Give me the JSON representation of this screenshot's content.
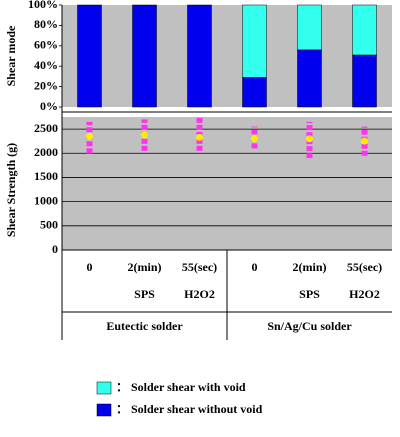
{
  "chart_data": [
    {
      "type": "stacked_bar",
      "ylabel": "Shear mode",
      "series": [
        {
          "name": "： Solder shear without void",
          "color": "#0000ee",
          "values": [
            100,
            100,
            100,
            29,
            56,
            51
          ]
        },
        {
          "name": "： Solder shear with void",
          "color": "#33ffee",
          "values": [
            0,
            0,
            0,
            71,
            44,
            49
          ]
        }
      ],
      "ylim": [
        0,
        100
      ],
      "yticks": [
        {
          "value": 0,
          "label": "0%"
        },
        {
          "value": 20,
          "label": "20%"
        },
        {
          "value": 40,
          "label": "40%"
        },
        {
          "value": 60,
          "label": "60%"
        },
        {
          "value": 80,
          "label": "80%"
        },
        {
          "value": 100,
          "label": "100%"
        }
      ]
    },
    {
      "type": "range_dot",
      "ylabel": "Shear Strength (g)",
      "low": [
        2000,
        2050,
        2050,
        2100,
        1900,
        1950
      ],
      "mean": [
        2350,
        2380,
        2330,
        2300,
        2300,
        2250
      ],
      "high": [
        2650,
        2700,
        2750,
        2550,
        2650,
        2550
      ],
      "range_color": "#ff33ee",
      "mean_color": "#ffee00",
      "ylim": [
        0,
        2750
      ],
      "yticks": [
        0,
        500,
        1000,
        1500,
        2000,
        2500
      ],
      "grid": true
    }
  ],
  "table": {
    "rows": [
      [
        "0",
        "2(min)",
        "55(sec)",
        "0",
        "2(min)",
        "55(sec)"
      ],
      [
        null,
        "SPS",
        "H2O2",
        null,
        "SPS",
        "H2O2"
      ]
    ],
    "groups": [
      "Eutectic solder",
      "Sn/Ag/Cu solder"
    ]
  }
}
